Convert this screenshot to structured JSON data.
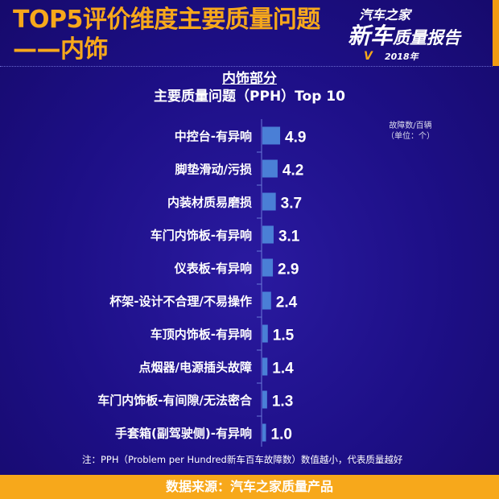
{
  "header": {
    "title_line1": "TOP5评价维度主要质量问题",
    "title_line2": "——内饰"
  },
  "logo": {
    "line1": "汽车之家",
    "line2a": "新车",
    "line2b": "质量报告",
    "year": "2018年"
  },
  "chart_data": {
    "type": "bar",
    "orientation": "horizontal",
    "section": "内饰部分",
    "title": "主要质量问题（PPH）Top 10",
    "unit_line1": "故障数/百辆",
    "unit_line2": "（单位：个）",
    "categories": [
      "中控台-有异响",
      "脚垫滑动/污损",
      "内装材质易磨损",
      "车门内饰板-有异响",
      "仪表板-有异响",
      "杯架-设计不合理/不易操作",
      "车顶内饰板-有异响",
      "点烟器/电源插头故障",
      "车门内饰板-有间隙/无法密合",
      "手套箱(副驾驶侧)-有异响"
    ],
    "values": [
      4.9,
      4.2,
      3.7,
      3.1,
      2.9,
      2.4,
      1.5,
      1.4,
      1.3,
      1.0
    ],
    "value_labels": [
      "4.9",
      "4.2",
      "3.7",
      "3.1",
      "2.9",
      "2.4",
      "1.5",
      "1.4",
      "1.3",
      "1.0"
    ],
    "bar_color": "#4a7fd6",
    "grid": false
  },
  "note": "注：PPH（Problem per Hundred新车百车故障数）数值越小，代表质量越好",
  "footer": "数据来源：汽车之家质量产品",
  "colors": {
    "accent": "#f7a81b",
    "background": "#1d0f86"
  }
}
